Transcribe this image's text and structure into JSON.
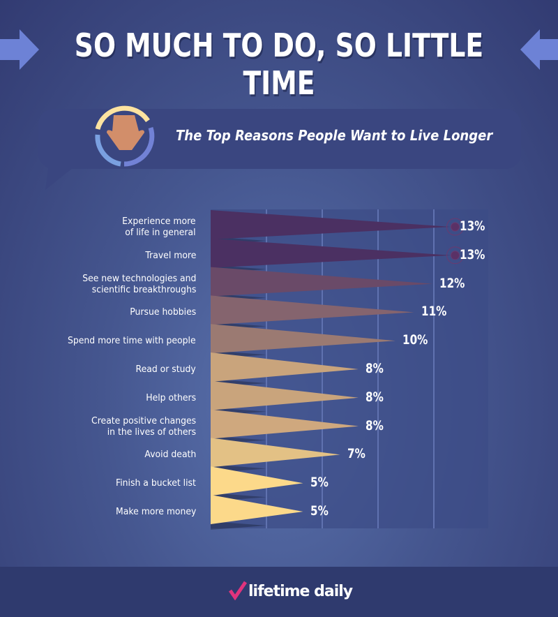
{
  "header": {
    "title": "SO MUCH TO DO, SO LITTLE TIME",
    "subtitle": "The Top Reasons People Want to Live Longer"
  },
  "chart_data": {
    "type": "bar",
    "title": "The Top Reasons People Want to Live Longer",
    "unit": "%",
    "categories": [
      "Experience more of life in general",
      "Travel more",
      "See new technologies and scientific breakthroughs",
      "Pursue hobbies",
      "Spend more time with people",
      "Read or study",
      "Help others",
      "Create positive changes in the lives of others",
      "Avoid death",
      "Finish a bucket list",
      "Make more money"
    ],
    "label_lines": [
      [
        "Experience more",
        "of life in general"
      ],
      [
        "Travel more"
      ],
      [
        "See new technologies and",
        "scientific breakthroughs"
      ],
      [
        "Pursue hobbies"
      ],
      [
        "Spend more time with people"
      ],
      [
        "Read or study"
      ],
      [
        "Help others"
      ],
      [
        "Create positive changes",
        "in the lives of others"
      ],
      [
        "Avoid death"
      ],
      [
        "Finish a bucket list"
      ],
      [
        "Make more money"
      ]
    ],
    "values": [
      13,
      13,
      12,
      11,
      10,
      8,
      8,
      8,
      7,
      5,
      5
    ],
    "value_labels": [
      "13%",
      "13%",
      "12%",
      "11%",
      "10%",
      "8%",
      "8%",
      "8%",
      "7%",
      "5%",
      "5%"
    ],
    "xlim": [
      0,
      15
    ],
    "colors": [
      "#4b3062",
      "#4b3062",
      "#6a4a68",
      "#85646e",
      "#9b7a72",
      "#c9a47c",
      "#c9a47c",
      "#cfa87e",
      "#e3c185",
      "#fcd98a",
      "#fcd98a"
    ],
    "grid": true
  },
  "footer": {
    "logo": "lifetime daily"
  }
}
